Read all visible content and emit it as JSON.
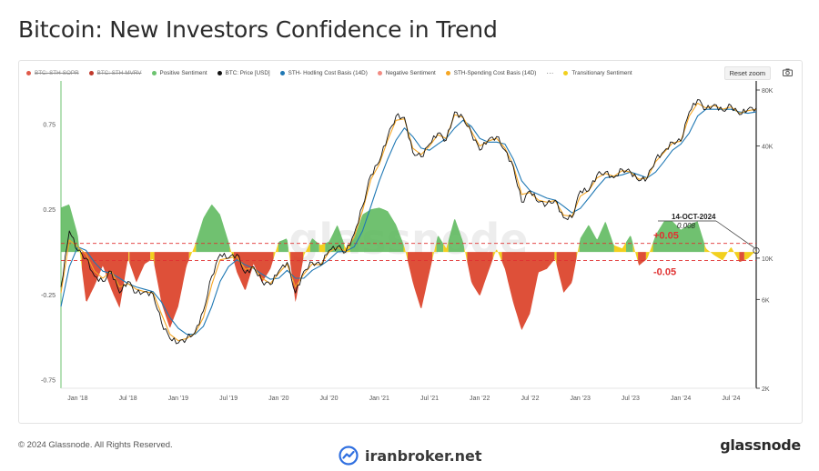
{
  "page": {
    "title": "Bitcoin: New Investors Confidence in Trend",
    "copyright": "© 2024 Glassnode. All Rights Reserved.",
    "brand": "glassnode",
    "partner": "iranbroker.net",
    "reset_zoom": "Reset zoom",
    "watermark": "glassnode"
  },
  "legend": [
    {
      "label": "BTC: STH-SOPR",
      "color": "#e05a4a",
      "disabled": true
    },
    {
      "label": "BTC: STH-MVRV",
      "color": "#c0392b",
      "disabled": true
    },
    {
      "label": "Positive Sentiment",
      "color": "#6cc36f",
      "disabled": false
    },
    {
      "label": "BTC: Price [USD]",
      "color": "#111111",
      "disabled": false
    },
    {
      "label": "STH- Hodling Cost Basis (14D)",
      "color": "#1f78b4",
      "disabled": false
    },
    {
      "label": "Negative Sentiment",
      "color": "#f28b82",
      "disabled": false
    },
    {
      "label": "STH-Spending Cost Basis (14D)",
      "color": "#f5a623",
      "disabled": false
    },
    {
      "label": "···",
      "color": "",
      "separator": true
    },
    {
      "label": "Transitionary Sentiment",
      "color": "#f2d01e",
      "disabled": false
    }
  ],
  "colors": {
    "positive": "#5cb85c",
    "negative": "#d9381e",
    "transitionary": "#f2d01e",
    "price": "#111111",
    "hodling": "#1f78b4",
    "spending": "#f5a623",
    "threshold": "#e03131",
    "annotation_text": "#e03131"
  },
  "chart_data": {
    "type": "line",
    "x_ticks": [
      "Jan '18",
      "Jul '18",
      "Jan '19",
      "Jul '19",
      "Jan '20",
      "Jul '20",
      "Jan '21",
      "Jul '21",
      "Jan '22",
      "Jul '22",
      "Jan '23",
      "Jul '23",
      "Jan '24",
      "Jul '24"
    ],
    "x_range": [
      "2017-11",
      "2024-10"
    ],
    "y_left": {
      "ticks": [
        "0.75",
        "0.25",
        "-0.25",
        "-0.75"
      ],
      "values": [
        0.75,
        0.25,
        -0.25,
        -0.75
      ],
      "range": [
        -0.8,
        0.95
      ]
    },
    "y_right": {
      "ticks": [
        "80K",
        "40K",
        "10K",
        "6K",
        "2K"
      ],
      "values": [
        80000,
        40000,
        10000,
        6000,
        2000
      ],
      "scale": "log",
      "range": [
        2000,
        80000
      ]
    },
    "thresholds": [
      {
        "value": 0.05,
        "label": "+0.05"
      },
      {
        "value": -0.05,
        "label": "-0.05"
      }
    ],
    "annotation": {
      "date": "14-OCT-2024",
      "value": "0.008"
    },
    "sentiment": {
      "x": [
        "2017-11",
        "2017-12",
        "2018-01",
        "2018-02",
        "2018-03",
        "2018-04",
        "2018-05",
        "2018-06",
        "2018-07",
        "2018-08",
        "2018-09",
        "2018-10",
        "2018-11",
        "2018-12",
        "2019-01",
        "2019-02",
        "2019-03",
        "2019-04",
        "2019-05",
        "2019-06",
        "2019-07",
        "2019-08",
        "2019-09",
        "2019-10",
        "2019-11",
        "2019-12",
        "2020-01",
        "2020-02",
        "2020-03",
        "2020-04",
        "2020-05",
        "2020-06",
        "2020-07",
        "2020-08",
        "2020-09",
        "2020-10",
        "2020-11",
        "2020-12",
        "2021-01",
        "2021-02",
        "2021-03",
        "2021-04",
        "2021-05",
        "2021-06",
        "2021-07",
        "2021-08",
        "2021-09",
        "2021-10",
        "2021-11",
        "2021-12",
        "2022-01",
        "2022-02",
        "2022-03",
        "2022-04",
        "2022-05",
        "2022-06",
        "2022-07",
        "2022-08",
        "2022-09",
        "2022-10",
        "2022-11",
        "2022-12",
        "2023-01",
        "2023-02",
        "2023-03",
        "2023-04",
        "2023-05",
        "2023-06",
        "2023-07",
        "2023-08",
        "2023-09",
        "2023-10",
        "2023-11",
        "2023-12",
        "2024-01",
        "2024-02",
        "2024-03",
        "2024-04",
        "2024-05",
        "2024-06",
        "2024-07",
        "2024-08",
        "2024-09",
        "2024-10"
      ],
      "values": [
        0.26,
        0.28,
        0.1,
        -0.3,
        -0.2,
        -0.08,
        -0.22,
        -0.33,
        -0.04,
        -0.18,
        -0.07,
        -0.04,
        -0.3,
        -0.45,
        -0.32,
        -0.08,
        0.04,
        0.2,
        0.28,
        0.22,
        0.06,
        -0.12,
        -0.23,
        -0.07,
        -0.18,
        -0.1,
        0.06,
        0.08,
        -0.3,
        -0.02,
        0.08,
        0.04,
        0.06,
        0.16,
        0.02,
        0.08,
        0.22,
        0.25,
        0.26,
        0.24,
        0.16,
        0.03,
        -0.18,
        -0.34,
        -0.12,
        0.1,
        0.02,
        0.2,
        0.06,
        -0.18,
        -0.26,
        -0.12,
        0.02,
        -0.1,
        -0.3,
        -0.46,
        -0.36,
        -0.12,
        -0.1,
        -0.04,
        -0.24,
        -0.18,
        0.08,
        0.16,
        0.07,
        0.18,
        0.04,
        0.02,
        0.1,
        -0.08,
        -0.04,
        0.1,
        0.18,
        0.18,
        0.13,
        0.16,
        0.18,
        0.02,
        -0.02,
        -0.05,
        0.03,
        -0.06,
        -0.04,
        0.008
      ]
    },
    "series": [
      {
        "name": "BTC: Price [USD]",
        "values": [
          7000,
          14000,
          11000,
          10000,
          8000,
          7500,
          8500,
          6500,
          7500,
          6500,
          6600,
          6400,
          4500,
          3700,
          3500,
          3700,
          4000,
          5200,
          8000,
          10500,
          10000,
          10500,
          8300,
          9000,
          7500,
          7200,
          8500,
          9500,
          6500,
          8500,
          9500,
          9200,
          11000,
          11500,
          10800,
          13500,
          19000,
          28000,
          33000,
          45000,
          58000,
          57000,
          37000,
          35000,
          41000,
          47000,
          43000,
          61000,
          57000,
          47000,
          38000,
          43000,
          45000,
          38000,
          31000,
          20000,
          23000,
          20000,
          19500,
          20500,
          16500,
          16500,
          23000,
          23000,
          28000,
          29000,
          27000,
          30000,
          29000,
          26000,
          27000,
          34000,
          37500,
          42000,
          42500,
          61000,
          71000,
          63000,
          67000,
          62000,
          66000,
          59000,
          63000,
          64000
        ]
      },
      {
        "name": "STH- Hodling Cost Basis (14D)",
        "values": [
          5500,
          9000,
          11500,
          11000,
          9500,
          8500,
          8300,
          7800,
          7300,
          7000,
          6800,
          6600,
          5800,
          4800,
          4200,
          3900,
          3900,
          4300,
          5500,
          7500,
          9000,
          9800,
          9200,
          8800,
          8200,
          7700,
          7800,
          8600,
          7800,
          7800,
          8600,
          9100,
          9800,
          10800,
          10900,
          11500,
          14000,
          19000,
          26000,
          34000,
          43000,
          50000,
          45000,
          39000,
          38000,
          41000,
          44000,
          50000,
          55000,
          51000,
          44000,
          42000,
          42000,
          41000,
          34000,
          26000,
          23000,
          22000,
          21000,
          20500,
          19000,
          17500,
          18500,
          21000,
          24000,
          27000,
          27500,
          28000,
          29000,
          28000,
          27000,
          29000,
          33000,
          38000,
          41000,
          47000,
          58000,
          63000,
          63000,
          63000,
          63000,
          61000,
          60000,
          61000
        ]
      },
      {
        "name": "STH-Spending Cost Basis (14D)",
        "values": [
          6500,
          12500,
          11500,
          10500,
          8500,
          7800,
          8500,
          7000,
          7300,
          6800,
          6600,
          6500,
          5000,
          3900,
          3600,
          3700,
          3950,
          4800,
          7200,
          9800,
          10000,
          10200,
          8700,
          8900,
          7800,
          7300,
          8300,
          9300,
          7000,
          8200,
          9300,
          9200,
          10800,
          11400,
          10900,
          13000,
          18000,
          26500,
          32000,
          43000,
          55000,
          56000,
          39000,
          36000,
          40000,
          46000,
          44000,
          59000,
          57000,
          48000,
          40000,
          42500,
          44000,
          39000,
          31500,
          22000,
          22500,
          20500,
          20000,
          20400,
          17000,
          16800,
          21500,
          23000,
          27000,
          28500,
          27500,
          29500,
          29000,
          26500,
          27000,
          33000,
          37000,
          41500,
          42500,
          58000,
          68000,
          64000,
          66000,
          63000,
          65000,
          60000,
          62000,
          63000
        ]
      }
    ]
  }
}
